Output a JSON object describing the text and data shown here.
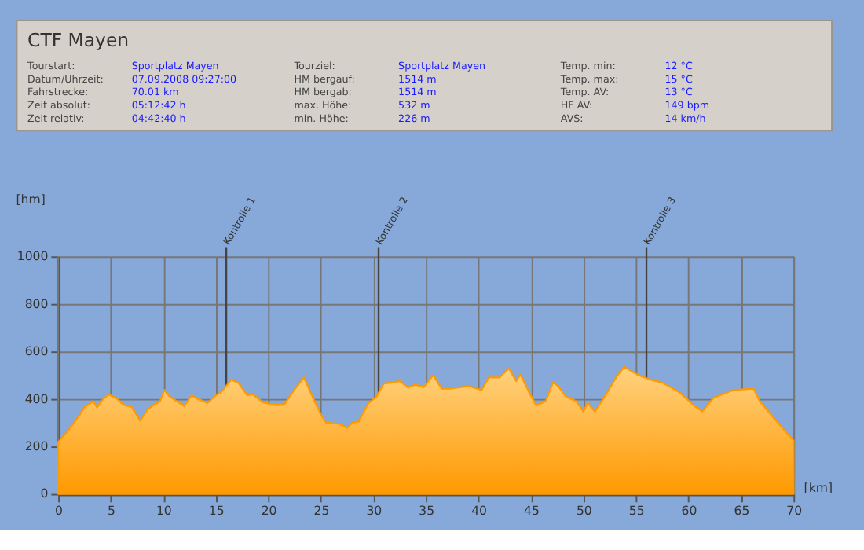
{
  "chart_data": [
    {
      "type": "other",
      "title": "CTF Mayen",
      "annotations": [
        "Tourstart:",
        "Sportplatz Mayen",
        "Datum/Uhrzeit:",
        "07.09.2008 09:27:00",
        "Fahrstrecke:",
        "70.01 km",
        "Zeit absolut:",
        "05:12:42 h",
        "Zeit relativ:",
        "04:42:40 h",
        "Tourziel:",
        "Sportplatz Mayen",
        "HM bergauf:",
        "1514 m",
        "HM bergab:",
        "1514 m",
        "max. Höhe:",
        "532 m",
        "min. Höhe:",
        "226 m",
        "Temp. min:",
        "12 °C",
        "Temp. max:",
        "15 °C",
        "Temp. AV:",
        "13 °C",
        "HF AV:",
        "149 bpm",
        "AVS:",
        "14 km/h"
      ]
    },
    {
      "type": "area",
      "xlabel": "[km]",
      "ylabel": "[hm]",
      "xlim": [
        0,
        70
      ],
      "ylim": [
        0,
        1000
      ],
      "xticks": [
        0,
        5,
        10,
        15,
        20,
        25,
        30,
        35,
        40,
        45,
        50,
        55,
        60,
        65,
        70
      ],
      "yticks": [
        0,
        200,
        400,
        600,
        800,
        1000
      ],
      "grid": true,
      "series": [
        {
          "color": "#ff9900",
          "x": [
            0,
            1,
            2,
            2.5,
            3.3,
            3.7,
            4.3,
            4.8,
            5.5,
            6.2,
            7,
            7.8,
            8.5,
            9,
            9.7,
            10.1,
            10.6,
            11.3,
            12,
            12.7,
            13.3,
            14.2,
            15,
            15.5,
            16.5,
            17.2,
            18,
            18.5,
            19.5,
            20.5,
            21.5,
            22.5,
            23.4,
            24.2,
            25,
            25.5,
            26.8,
            27.5,
            28,
            28.6,
            29.5,
            30.3,
            31,
            32,
            32.5,
            33.3,
            34,
            34.8,
            35.7,
            36.5,
            37.2,
            39.1,
            40.3,
            41,
            42,
            42.9,
            43.6,
            44,
            44.9,
            45.5,
            46.4,
            47.1,
            47.6,
            48.3,
            49.3,
            50,
            50.4,
            51.1,
            52.2,
            53.2,
            53.9,
            55.1,
            56.3,
            57.5,
            59.2,
            60.5,
            61.3,
            62.4,
            63.4,
            64,
            64.8,
            66.2,
            66.8,
            68.2,
            69.9,
            70
          ],
          "values": [
            218,
            270,
            330,
            365,
            390,
            365,
            400,
            418,
            405,
            375,
            365,
            308,
            355,
            372,
            390,
            438,
            410,
            390,
            370,
            415,
            400,
            383,
            415,
            428,
            482,
            465,
            415,
            420,
            385,
            375,
            375,
            440,
            490,
            410,
            335,
            300,
            295,
            278,
            300,
            305,
            380,
            410,
            465,
            470,
            475,
            448,
            460,
            450,
            500,
            443,
            443,
            454,
            437,
            490,
            490,
            529,
            475,
            503,
            422,
            373,
            390,
            469,
            454,
            411,
            390,
            347,
            383,
            347,
            422,
            497,
            535,
            503,
            482,
            469,
            426,
            373,
            347,
            405,
            422,
            433,
            439,
            443,
            390,
            315,
            229,
            226
          ]
        }
      ],
      "ref_lines": [
        {
          "axis": "x",
          "value": 16,
          "label": "Kontrolle 1"
        },
        {
          "axis": "x",
          "value": 30.5,
          "label": "Kontrolle 2"
        },
        {
          "axis": "x",
          "value": 56,
          "label": "Kontrolle 3"
        }
      ]
    }
  ]
}
